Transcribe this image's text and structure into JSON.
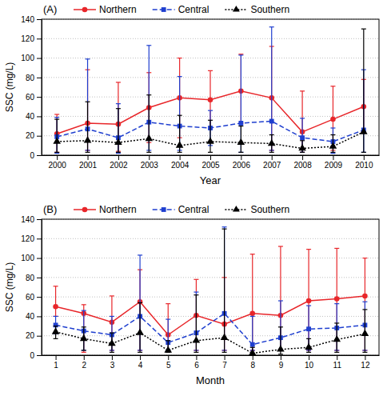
{
  "chart_data": [
    {
      "type": "line",
      "annotations": [
        "(A)"
      ],
      "x_label": "Year",
      "y_label": "SSC (mg/L)",
      "x": [
        2000,
        2001,
        2002,
        2003,
        2004,
        2005,
        2006,
        2007,
        2008,
        2009,
        2010
      ],
      "xlim": [
        1999.5,
        2010.5
      ],
      "xticks": [
        2000,
        2001,
        2002,
        2003,
        2004,
        2005,
        2006,
        2007,
        2008,
        2009,
        2010
      ],
      "ylim": [
        0,
        140
      ],
      "yticks": [
        0,
        20,
        40,
        60,
        80,
        100,
        120,
        140
      ],
      "grid": true,
      "legend": "top",
      "series": [
        {
          "name": "Northern",
          "color": "#e8262a",
          "marker": "circle",
          "line_style": "solid",
          "values": [
            22,
            33,
            32,
            49,
            59,
            57,
            66,
            59,
            24,
            37,
            50
          ],
          "lower": [
            3,
            5,
            4,
            13,
            18,
            27,
            33,
            5,
            3,
            5,
            24
          ],
          "upper": [
            42,
            88,
            75,
            85,
            100,
            87,
            104,
            112,
            66,
            71,
            78
          ]
        },
        {
          "name": "Central",
          "color": "#1f3fcf",
          "marker": "square",
          "line_style": "dashed",
          "values": [
            19,
            27,
            18,
            34,
            30,
            28,
            33,
            35,
            18,
            14,
            26
          ],
          "lower": [
            2,
            5,
            2,
            5,
            5,
            10,
            3,
            5,
            3,
            2,
            3
          ],
          "upper": [
            39,
            99,
            53,
            113,
            81,
            46,
            103,
            132,
            38,
            28,
            88
          ]
        },
        {
          "name": "Southern",
          "color": "#000000",
          "marker": "triangle",
          "line_style": "dotted",
          "values": [
            14,
            15,
            13,
            17,
            10,
            14,
            13,
            12,
            7,
            9,
            24
          ],
          "lower": [
            3,
            3,
            3,
            3,
            3,
            3,
            3,
            3,
            3,
            3,
            3
          ],
          "upper": [
            37,
            55,
            48,
            62,
            41,
            36,
            30,
            21,
            15,
            21,
            130
          ]
        }
      ]
    },
    {
      "type": "line",
      "annotations": [
        "(B)"
      ],
      "x_label": "Month",
      "y_label": "SSC (mg/L)",
      "x": [
        1,
        2,
        3,
        4,
        5,
        6,
        7,
        8,
        9,
        10,
        11,
        12
      ],
      "xlim": [
        0.5,
        12.5
      ],
      "xticks": [
        1,
        2,
        3,
        4,
        5,
        6,
        7,
        8,
        9,
        10,
        11,
        12
      ],
      "ylim": [
        0,
        140
      ],
      "yticks": [
        0,
        20,
        40,
        60,
        80,
        100,
        120,
        140
      ],
      "grid": true,
      "legend": "top",
      "series": [
        {
          "name": "Northern",
          "color": "#e8262a",
          "marker": "circle",
          "line_style": "solid",
          "values": [
            50,
            43,
            34,
            55,
            21,
            41,
            32,
            43,
            41,
            56,
            58,
            61
          ],
          "lower": [
            40,
            3,
            5,
            5,
            4,
            5,
            5,
            5,
            5,
            5,
            5,
            5
          ],
          "upper": [
            71,
            52,
            61,
            88,
            53,
            78,
            80,
            104,
            112,
            109,
            110,
            100
          ]
        },
        {
          "name": "Central",
          "color": "#1f3fcf",
          "marker": "square",
          "line_style": "dashed",
          "values": [
            31,
            25,
            21,
            40,
            13,
            23,
            43,
            11,
            18,
            27,
            28,
            31
          ],
          "lower": [
            22,
            5,
            5,
            5,
            5,
            5,
            5,
            5,
            5,
            5,
            5,
            5
          ],
          "upper": [
            40,
            46,
            40,
            103,
            37,
            65,
            132,
            40,
            56,
            51,
            53,
            55
          ]
        },
        {
          "name": "Southern",
          "color": "#000000",
          "marker": "triangle",
          "line_style": "dotted",
          "values": [
            24,
            17,
            12,
            23,
            5,
            15,
            18,
            2,
            6,
            8,
            16,
            22
          ],
          "lower": [
            17,
            5,
            3,
            3,
            3,
            3,
            3,
            1,
            1,
            3,
            3,
            3
          ],
          "upper": [
            30,
            29,
            23,
            54,
            15,
            62,
            130,
            8,
            29,
            17,
            33,
            47
          ]
        }
      ]
    }
  ]
}
